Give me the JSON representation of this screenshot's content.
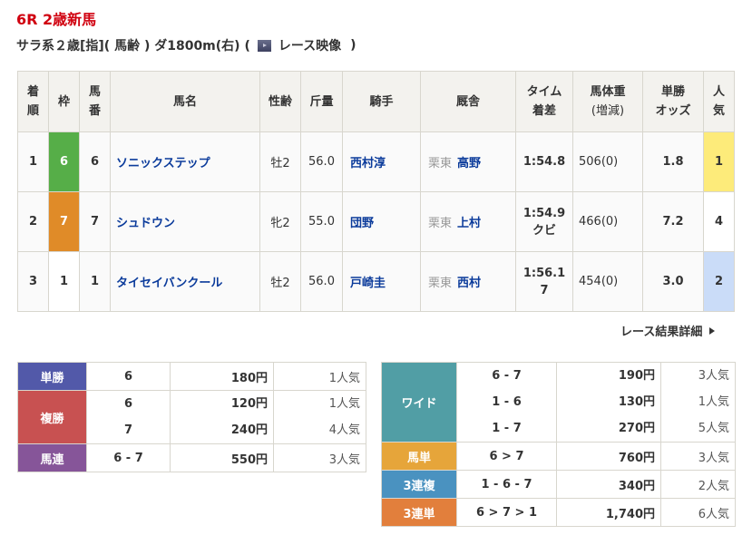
{
  "race": {
    "title": "6R 2歳新馬",
    "conditions": "サラ系２歳[指]( 馬齢 ) ダ1800m(右) (",
    "video_label": "レース映像",
    "close_paren": ")"
  },
  "colors": {
    "frame_6": "#56ae48",
    "frame_7": "#e08b28",
    "pop_1": "#fdeb7a",
    "pop_2": "#cadcf8"
  },
  "headers": [
    "着順",
    "枠",
    "馬番",
    "馬名",
    "性齢",
    "斤量",
    "騎手",
    "厩舎",
    "タイム着差",
    "馬体重(増減)",
    "単勝オッズ",
    "人気"
  ],
  "header_lines": {
    "rank": [
      "着",
      "順"
    ],
    "frame": "枠",
    "num": [
      "馬",
      "番"
    ],
    "name": "馬名",
    "sexage": "性齢",
    "weight": "斤量",
    "jockey": "騎手",
    "stable": "厩舎",
    "time": [
      "タイム",
      "着差"
    ],
    "body": [
      "馬体重",
      "(増減)"
    ],
    "odds": [
      "単勝",
      "オッズ"
    ],
    "pop": [
      "人",
      "気"
    ]
  },
  "results": [
    {
      "rank": "1",
      "frame": "6",
      "num": "6",
      "name": "ソニックステップ",
      "sexage": "牡2",
      "weight": "56.0",
      "jockey": "西村淳",
      "region": "栗東",
      "trainer": "高野",
      "time": "1:54.8",
      "margin": "",
      "body": "506(0)",
      "odds": "1.8",
      "pop": "1"
    },
    {
      "rank": "2",
      "frame": "7",
      "num": "7",
      "name": "シュドウン",
      "sexage": "牝2",
      "weight": "55.0",
      "jockey": "団野",
      "region": "栗東",
      "trainer": "上村",
      "time": "1:54.9",
      "margin": "クビ",
      "body": "466(0)",
      "odds": "7.2",
      "pop": "4"
    },
    {
      "rank": "3",
      "frame": "1",
      "num": "1",
      "name": "タイセイバンクール",
      "sexage": "牡2",
      "weight": "56.0",
      "jockey": "戸崎圭",
      "region": "栗東",
      "trainer": "西村",
      "time": "1:56.1",
      "margin": "7",
      "body": "454(0)",
      "odds": "3.0",
      "pop": "2"
    }
  ],
  "detail_link": "レース結果詳細",
  "payouts_left": [
    {
      "type": "単勝",
      "color": "#5259a9",
      "entries": [
        {
          "combo": "6",
          "amount": "180円",
          "pop": "1人気"
        }
      ]
    },
    {
      "type": "複勝",
      "color": "#c85151",
      "entries": [
        {
          "combo": "6",
          "amount": "120円",
          "pop": "1人気"
        },
        {
          "combo": "7",
          "amount": "240円",
          "pop": "4人気"
        }
      ]
    },
    {
      "type": "馬連",
      "color": "#865599",
      "entries": [
        {
          "combo": "6 - 7",
          "amount": "550円",
          "pop": "3人気"
        }
      ]
    }
  ],
  "payouts_right": [
    {
      "type": "ワイド",
      "color": "#519ea5",
      "entries": [
        {
          "combo": "6 - 7",
          "amount": "190円",
          "pop": "3人気"
        },
        {
          "combo": "1 - 6",
          "amount": "130円",
          "pop": "1人気"
        },
        {
          "combo": "1 - 7",
          "amount": "270円",
          "pop": "5人気"
        }
      ]
    },
    {
      "type": "馬単",
      "color": "#e6a53a",
      "entries": [
        {
          "combo": "6 > 7",
          "amount": "760円",
          "pop": "3人気"
        }
      ]
    },
    {
      "type": "3連複",
      "color": "#4a92c0",
      "entries": [
        {
          "combo": "1 - 6 - 7",
          "amount": "340円",
          "pop": "2人気"
        }
      ]
    },
    {
      "type": "3連単",
      "color": "#e27f3c",
      "entries": [
        {
          "combo": "6 > 7 > 1",
          "amount": "1,740円",
          "pop": "6人気"
        }
      ]
    }
  ]
}
